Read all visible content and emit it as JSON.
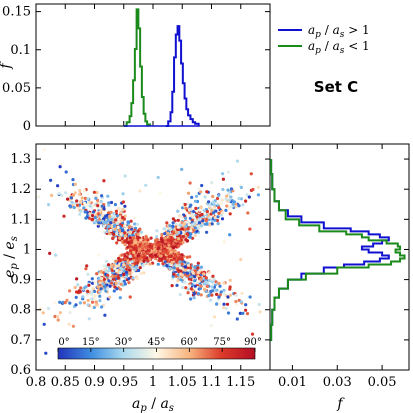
{
  "chart_data": [
    {
      "type": "line",
      "panel": "top-histogram",
      "ylabel": "f",
      "xlim": [
        0.8,
        1.2
      ],
      "ylim": [
        0,
        0.16
      ],
      "y_ticks": [
        0,
        0.05,
        0.1,
        0.15
      ],
      "y_tick_labels": [
        "0",
        "0.05",
        "0.1",
        "0.15"
      ],
      "series": [
        {
          "name": "a_p / a_s < 1",
          "color": "#1a8a1a",
          "x": [
            0.95,
            0.955,
            0.96,
            0.963,
            0.966,
            0.969,
            0.972,
            0.975,
            0.978,
            0.981,
            0.984,
            0.987,
            0.99,
            0.995
          ],
          "y": [
            0.0,
            0.005,
            0.013,
            0.03,
            0.06,
            0.101,
            0.153,
            0.128,
            0.078,
            0.038,
            0.016,
            0.006,
            0.002,
            0.0
          ]
        },
        {
          "name": "a_p / a_s > 1",
          "color": "#1010d0",
          "x": [
            1.022,
            1.026,
            1.03,
            1.033,
            1.036,
            1.039,
            1.042,
            1.045,
            1.048,
            1.051,
            1.054,
            1.057,
            1.06,
            1.064,
            1.068,
            1.072,
            1.078
          ],
          "y": [
            0.0,
            0.006,
            0.018,
            0.045,
            0.09,
            0.12,
            0.131,
            0.112,
            0.082,
            0.056,
            0.036,
            0.022,
            0.014,
            0.009,
            0.005,
            0.003,
            0.0
          ]
        }
      ]
    },
    {
      "type": "scatter",
      "panel": "main",
      "xlabel": "a_p / a_s",
      "ylabel": "e_p / e_s",
      "xlim": [
        0.8,
        1.2
      ],
      "ylim": [
        0.6,
        1.35
      ],
      "x_ticks": [
        0.8,
        0.85,
        0.9,
        0.95,
        1.0,
        1.05,
        1.1,
        1.15
      ],
      "x_tick_labels": [
        "0.8",
        "0.85",
        "0.9",
        "0.95",
        "1",
        "1.05",
        "1.1",
        "1.15"
      ],
      "y_ticks": [
        0.6,
        0.7,
        0.8,
        0.9,
        1.0,
        1.1,
        1.2,
        1.3
      ],
      "y_tick_labels": [
        "0.6",
        "0.7",
        "0.8",
        "0.9",
        "1",
        "1.1",
        "1.2",
        "1.3"
      ],
      "color_encoding": "inclination (degrees)",
      "colorbar": {
        "ticks": [
          "0°",
          "15°",
          "30°",
          "45°",
          "60°",
          "75°",
          "90°"
        ],
        "colors": [
          "#2233bb",
          "#3f8ee0",
          "#aad9ee",
          "#fff8e6",
          "#f7b37d",
          "#dc3a2a",
          "#b30f24"
        ]
      },
      "clusters": [
        {
          "description": "a_p < a_s branch",
          "x_center": 0.955,
          "y_range": [
            0.62,
            1.18
          ]
        },
        {
          "description": "a_p > a_s branch",
          "x_center": 1.045,
          "y_range": [
            0.62,
            1.22
          ]
        }
      ]
    },
    {
      "type": "line",
      "panel": "right-histogram",
      "xlabel": "f",
      "xlim": [
        0,
        0.062
      ],
      "ylim": [
        0.6,
        1.35
      ],
      "x_ticks": [
        0.01,
        0.03,
        0.05
      ],
      "x_tick_labels": [
        "0.01",
        "0.03",
        "0.05"
      ],
      "series": [
        {
          "name": "a_p / a_s > 1",
          "color": "#1010d0",
          "y": [
            1.3,
            1.25,
            1.2,
            1.16,
            1.13,
            1.11,
            1.09,
            1.07,
            1.06,
            1.05,
            1.04,
            1.03,
            1.02,
            1.01,
            1.0,
            0.99,
            0.98,
            0.97,
            0.96,
            0.95,
            0.94,
            0.92,
            0.9,
            0.87,
            0.84,
            0.8,
            0.75,
            0.7
          ],
          "x": [
            0.0005,
            0.001,
            0.002,
            0.004,
            0.008,
            0.014,
            0.024,
            0.036,
            0.044,
            0.049,
            0.053,
            0.05,
            0.046,
            0.041,
            0.044,
            0.05,
            0.053,
            0.049,
            0.042,
            0.033,
            0.024,
            0.014,
            0.008,
            0.004,
            0.002,
            0.001,
            0.0005,
            0.0002
          ]
        },
        {
          "name": "a_p / a_s < 1",
          "color": "#1a8a1a",
          "y": [
            1.3,
            1.25,
            1.2,
            1.16,
            1.13,
            1.1,
            1.08,
            1.06,
            1.05,
            1.04,
            1.03,
            1.02,
            1.01,
            1.0,
            0.99,
            0.98,
            0.97,
            0.96,
            0.95,
            0.94,
            0.92,
            0.9,
            0.87,
            0.84,
            0.8,
            0.75,
            0.7
          ],
          "x": [
            0.0005,
            0.001,
            0.002,
            0.004,
            0.007,
            0.013,
            0.022,
            0.034,
            0.041,
            0.044,
            0.052,
            0.057,
            0.058,
            0.056,
            0.058,
            0.06,
            0.058,
            0.054,
            0.044,
            0.03,
            0.016,
            0.008,
            0.004,
            0.002,
            0.001,
            0.0005,
            0.0002
          ]
        }
      ]
    }
  ],
  "legend": {
    "entries": [
      {
        "label_main": "a",
        "label_sub": "p",
        "sep": " / ",
        "label_main2": "a",
        "label_sub2": "s",
        "rel": " > 1",
        "color": "#1010d0"
      },
      {
        "label_main": "a",
        "label_sub": "p",
        "sep": " / ",
        "label_main2": "a",
        "label_sub2": "s",
        "rel": " < 1",
        "color": "#1a8a1a"
      }
    ]
  },
  "set_label": "Set C",
  "axis_titles": {
    "top_y": "f",
    "right_x": "f"
  }
}
